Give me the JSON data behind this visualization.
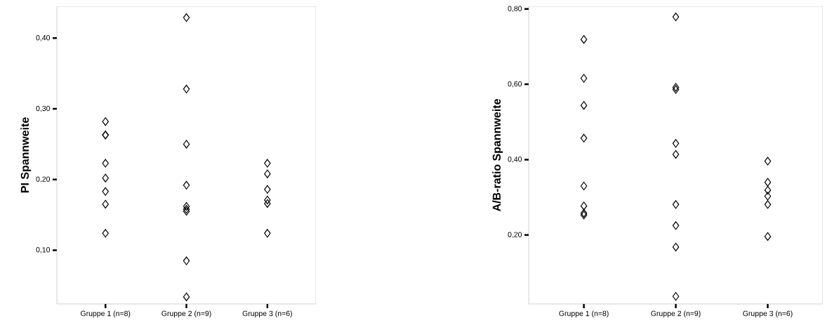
{
  "chart_data": [
    {
      "type": "scatter",
      "ylabel": "PI Spannweite",
      "categories": [
        "Gruppe 1 (n=8)",
        "Gruppe 2 (n=9)",
        "Gruppe 3 (n=6)"
      ],
      "ylim": [
        0.024,
        0.445
      ],
      "yticks": [
        {
          "value": 0.1,
          "label": "0,10"
        },
        {
          "value": 0.2,
          "label": "0,20"
        },
        {
          "value": 0.3,
          "label": "0,30"
        },
        {
          "value": 0.4,
          "label": "0,40"
        }
      ],
      "marker": "diamond",
      "series": [
        {
          "color": "#000000",
          "x": [
            "Gruppe 1 (n=8)",
            "Gruppe 1 (n=8)",
            "Gruppe 1 (n=8)",
            "Gruppe 1 (n=8)",
            "Gruppe 1 (n=8)",
            "Gruppe 1 (n=8)",
            "Gruppe 1 (n=8)",
            "Gruppe 1 (n=8)",
            "Gruppe 2 (n=9)",
            "Gruppe 2 (n=9)",
            "Gruppe 2 (n=9)",
            "Gruppe 2 (n=9)",
            "Gruppe 2 (n=9)",
            "Gruppe 2 (n=9)",
            "Gruppe 2 (n=9)",
            "Gruppe 2 (n=9)",
            "Gruppe 2 (n=9)",
            "Gruppe 3 (n=6)",
            "Gruppe 3 (n=6)",
            "Gruppe 3 (n=6)",
            "Gruppe 3 (n=6)",
            "Gruppe 3 (n=6)",
            "Gruppe 3 (n=6)"
          ],
          "values": [
            0.282,
            0.263,
            0.263,
            0.223,
            0.202,
            0.183,
            0.165,
            0.124,
            0.429,
            0.328,
            0.25,
            0.192,
            0.162,
            0.158,
            0.155,
            0.085,
            0.034,
            0.223,
            0.208,
            0.186,
            0.171,
            0.166,
            0.124
          ]
        }
      ]
    },
    {
      "type": "scatter",
      "ylabel": "A/B-ratio Spannweite",
      "categories": [
        "Gruppe 1 (n=8)",
        "Gruppe 2 (n=9)",
        "Gruppe 3 (n=6)"
      ],
      "ylim": [
        0.017,
        0.807
      ],
      "yticks": [
        {
          "value": 0.2,
          "label": "0,20"
        },
        {
          "value": 0.4,
          "label": "0,40"
        },
        {
          "value": 0.6,
          "label": "0,60"
        },
        {
          "value": 0.8,
          "label": "0,80"
        }
      ],
      "marker": "diamond",
      "series": [
        {
          "color": "#000000",
          "x": [
            "Gruppe 1 (n=8)",
            "Gruppe 1 (n=8)",
            "Gruppe 1 (n=8)",
            "Gruppe 1 (n=8)",
            "Gruppe 1 (n=8)",
            "Gruppe 1 (n=8)",
            "Gruppe 1 (n=8)",
            "Gruppe 1 (n=8)",
            "Gruppe 2 (n=9)",
            "Gruppe 2 (n=9)",
            "Gruppe 2 (n=9)",
            "Gruppe 2 (n=9)",
            "Gruppe 2 (n=9)",
            "Gruppe 2 (n=9)",
            "Gruppe 2 (n=9)",
            "Gruppe 2 (n=9)",
            "Gruppe 2 (n=9)",
            "Gruppe 3 (n=6)",
            "Gruppe 3 (n=6)",
            "Gruppe 3 (n=6)",
            "Gruppe 3 (n=6)",
            "Gruppe 3 (n=6)",
            "Gruppe 3 (n=6)"
          ],
          "values": [
            0.719,
            0.616,
            0.544,
            0.457,
            0.33,
            0.277,
            0.258,
            0.253,
            0.779,
            0.592,
            0.586,
            0.443,
            0.414,
            0.281,
            0.225,
            0.168,
            0.037,
            0.396,
            0.34,
            0.319,
            0.303,
            0.281,
            0.196
          ]
        }
      ]
    }
  ]
}
